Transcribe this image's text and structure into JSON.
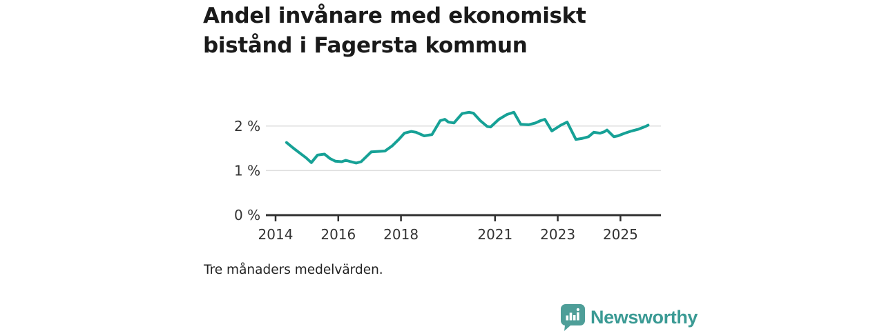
{
  "title": "Andel invånare med ekonomiskt bistånd i Fagersta kommun",
  "footnote": "Tre månaders medelvärden.",
  "branding": {
    "name": "Newsworthy",
    "icon": "newsworthy-speech-bubble-bar-chart-icon",
    "icon_color": "#4e9e98",
    "wordmark_color": "#3a9a94"
  },
  "colors": {
    "line": "#16a196",
    "grid": "#dddddd",
    "axis": "#2f2f2f",
    "tick_text": "#333333",
    "title_text": "#1a1a1a"
  },
  "chart_data": {
    "type": "line",
    "title": "Andel invånare med ekonomiskt bistånd i Fagersta kommun",
    "note": "Tre månaders medelvärden.",
    "xlabel": "",
    "ylabel": "",
    "y_unit": "percent of residents",
    "x_unit": "year (decimal, monthly 3-month rolling mean)",
    "xlim": [
      2013.75,
      2026.3
    ],
    "ylim": [
      0,
      2.65
    ],
    "grid": "horizontal-only",
    "legend_position": "none",
    "x_tick_values": [
      2014,
      2016,
      2018,
      2021,
      2023,
      2025
    ],
    "x_tick_labels": [
      "2014",
      "2016",
      "2018",
      "2021",
      "2023",
      "2025"
    ],
    "y_tick_values": [
      0,
      1,
      2
    ],
    "y_tick_labels": [
      "0 %",
      "1 %",
      "2 %"
    ],
    "series": [
      {
        "name": "Fagersta kommun",
        "color": "#16a196",
        "points": [
          [
            2014.35,
            1.63
          ],
          [
            2014.56,
            1.51
          ],
          [
            2014.78,
            1.39
          ],
          [
            2014.97,
            1.29
          ],
          [
            2015.14,
            1.18
          ],
          [
            2015.34,
            1.35
          ],
          [
            2015.56,
            1.37
          ],
          [
            2015.74,
            1.27
          ],
          [
            2015.91,
            1.21
          ],
          [
            2016.11,
            1.2
          ],
          [
            2016.24,
            1.23
          ],
          [
            2016.4,
            1.2
          ],
          [
            2016.57,
            1.17
          ],
          [
            2016.73,
            1.2
          ],
          [
            2017.05,
            1.42
          ],
          [
            2017.27,
            1.43
          ],
          [
            2017.49,
            1.44
          ],
          [
            2017.71,
            1.55
          ],
          [
            2017.93,
            1.7
          ],
          [
            2018.11,
            1.84
          ],
          [
            2018.33,
            1.88
          ],
          [
            2018.48,
            1.86
          ],
          [
            2018.74,
            1.78
          ],
          [
            2018.99,
            1.81
          ],
          [
            2019.25,
            2.12
          ],
          [
            2019.4,
            2.15
          ],
          [
            2019.51,
            2.09
          ],
          [
            2019.69,
            2.07
          ],
          [
            2019.95,
            2.28
          ],
          [
            2020.17,
            2.31
          ],
          [
            2020.31,
            2.29
          ],
          [
            2020.53,
            2.12
          ],
          [
            2020.75,
            1.99
          ],
          [
            2020.86,
            1.98
          ],
          [
            2021.12,
            2.15
          ],
          [
            2021.38,
            2.26
          ],
          [
            2021.6,
            2.31
          ],
          [
            2021.82,
            2.04
          ],
          [
            2022.07,
            2.03
          ],
          [
            2022.29,
            2.07
          ],
          [
            2022.45,
            2.12
          ],
          [
            2022.59,
            2.15
          ],
          [
            2022.81,
            1.89
          ],
          [
            2023.1,
            2.02
          ],
          [
            2023.3,
            2.09
          ],
          [
            2023.58,
            1.7
          ],
          [
            2023.76,
            1.72
          ],
          [
            2023.98,
            1.76
          ],
          [
            2024.15,
            1.86
          ],
          [
            2024.35,
            1.84
          ],
          [
            2024.48,
            1.87
          ],
          [
            2024.57,
            1.91
          ],
          [
            2024.79,
            1.76
          ],
          [
            2024.92,
            1.78
          ],
          [
            2025.14,
            1.84
          ],
          [
            2025.36,
            1.89
          ],
          [
            2025.58,
            1.93
          ],
          [
            2025.8,
            1.99
          ],
          [
            2025.88,
            2.02
          ]
        ]
      }
    ]
  }
}
